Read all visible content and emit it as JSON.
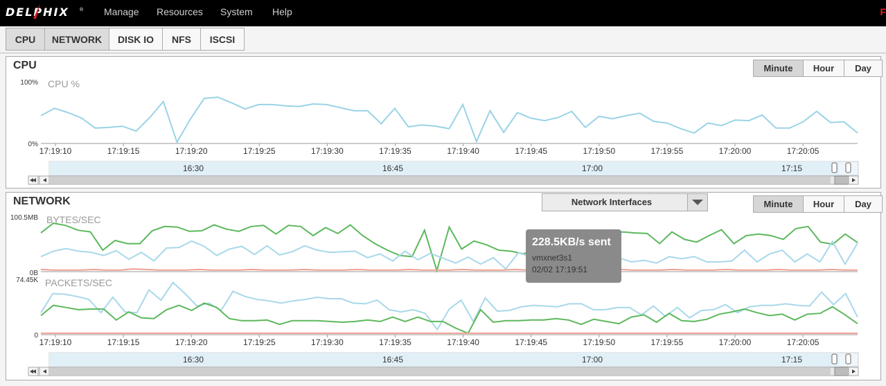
{
  "header": {
    "logo_text": "DELPHIX",
    "logo_reg": "®",
    "menu": [
      "Manage",
      "Resources",
      "System",
      "Help"
    ],
    "corner_mark": "F"
  },
  "tabs": [
    "CPU",
    "NETWORK",
    "DISK IO",
    "NFS",
    "ISCSI"
  ],
  "active_tabs": [
    "CPU",
    "NETWORK"
  ],
  "ranges": [
    "Minute",
    "Hour",
    "Day"
  ],
  "cpu_panel": {
    "title": "CPU",
    "series_label": "CPU %",
    "y_max_label": "100%",
    "y_min_label": "0%"
  },
  "network_panel": {
    "title": "NETWORK",
    "dropdown_label": "Network Interfaces",
    "bytes_label": "BYTES/SEC",
    "bytes_max_label": "100.5MB",
    "bytes_min_label": "0B",
    "packets_label": "PACKETS/SEC",
    "packets_max_label": "74.45K",
    "packets_min_label": "0"
  },
  "time_ticks": [
    "17:19:10",
    "17:19:15",
    "17:19:20",
    "17:19:25",
    "17:19:30",
    "17:19:35",
    "17:19:40",
    "17:19:45",
    "17:19:50",
    "17:19:55",
    "17:20:00",
    "17:20:05"
  ],
  "navigator_ticks": [
    "16:30",
    "16:45",
    "17:00",
    "17:15"
  ],
  "tooltip": {
    "value": "228.5KB/s sent",
    "interface": "vmxnet3s1",
    "timestamp": "02/02 17:19:51"
  },
  "colors": {
    "received": "#a8d8ea",
    "sent": "#5cb85c",
    "other": "#f0a090",
    "cpu": "#9ad3e6"
  },
  "chart_data": [
    {
      "type": "line",
      "title": "CPU %",
      "ylabel": "",
      "ylim": [
        0,
        100
      ],
      "x_start": "17:19:08",
      "x_step_seconds": 1,
      "series": [
        {
          "values": [
            45,
            57,
            50,
            41,
            25,
            26,
            28,
            20,
            42,
            68,
            2,
            40,
            73,
            75,
            66,
            56,
            63,
            63,
            61,
            60,
            64,
            63,
            58,
            53,
            53,
            32,
            57,
            27,
            30,
            28,
            24,
            63,
            3,
            53,
            18,
            50,
            41,
            37,
            42,
            52,
            26,
            44,
            40,
            45,
            49,
            36,
            33,
            24,
            17,
            33,
            29,
            38,
            37,
            46,
            25,
            25,
            35,
            52,
            34,
            35,
            17
          ]
        }
      ]
    },
    {
      "type": "line",
      "title": "BYTES/SEC",
      "ylim": [
        0,
        100.5
      ],
      "x_start": "17:19:08",
      "x_step_seconds": 1,
      "series": [
        {
          "values": [
            72,
            90,
            86,
            77,
            74,
            40,
            58,
            52,
            52,
            76,
            84,
            83,
            75,
            76,
            87,
            79,
            75,
            84,
            86,
            70,
            86,
            84,
            67,
            82,
            71,
            87,
            67,
            52,
            40,
            30,
            28,
            77,
            2,
            83,
            42,
            57,
            50,
            40,
            38,
            33,
            43,
            40,
            41,
            57,
            46,
            57,
            71,
            74,
            72,
            71,
            52,
            74,
            60,
            55,
            67,
            78,
            52,
            67,
            70,
            67,
            60,
            80,
            84,
            55,
            51,
            70,
            54
          ]
        },
        {
          "values": [
            28,
            38,
            43,
            38,
            36,
            30,
            39,
            23,
            36,
            20,
            44,
            45,
            57,
            47,
            30,
            42,
            47,
            32,
            48,
            31,
            37,
            48,
            40,
            36,
            37,
            38,
            26,
            33,
            20,
            38,
            22,
            34,
            25,
            16,
            27,
            14,
            26,
            5,
            35,
            28,
            33,
            35,
            24,
            39,
            27,
            30,
            26,
            18,
            21,
            16,
            28,
            24,
            28,
            18,
            18,
            20,
            40,
            18,
            33,
            40,
            18,
            33,
            18,
            56,
            14,
            53
          ]
        },
        {
          "values": [
            4,
            3,
            3,
            3,
            4,
            3,
            3,
            5,
            4,
            3,
            3,
            3,
            4,
            3,
            3,
            3,
            4,
            3,
            3,
            3,
            4,
            3,
            3,
            3,
            4,
            3,
            3,
            3,
            4,
            3,
            3,
            3,
            4,
            3,
            3,
            3,
            4,
            3,
            3,
            3,
            4,
            3,
            3,
            3,
            4,
            3,
            3,
            3,
            4,
            3,
            3,
            3,
            4,
            3,
            3,
            3,
            4,
            3,
            3,
            3,
            4,
            3,
            3
          ]
        }
      ]
    },
    {
      "type": "line",
      "title": "PACKETS/SEC",
      "ylim": [
        0,
        74.45
      ],
      "x_start": "17:19:08",
      "x_step_seconds": 1,
      "series": [
        {
          "values": [
            30,
            56,
            55,
            52,
            48,
            30,
            51,
            31,
            30,
            61,
            47,
            71,
            56,
            39,
            43,
            33,
            59,
            52,
            48,
            46,
            43,
            46,
            48,
            51,
            49,
            49,
            43,
            42,
            47,
            34,
            31,
            34,
            29,
            7,
            35,
            47,
            18,
            50,
            32,
            33,
            38,
            40,
            39,
            38,
            42,
            42,
            34,
            34,
            37,
            37,
            27,
            39,
            25,
            37,
            23,
            33,
            34,
            41,
            30,
            38,
            40,
            40,
            42,
            40,
            39,
            58,
            41,
            56,
            24
          ]
        },
        {
          "values": [
            26,
            40,
            37,
            34,
            35,
            35,
            20,
            31,
            23,
            22,
            34,
            40,
            33,
            43,
            37,
            22,
            19,
            19,
            20,
            14,
            19,
            19,
            19,
            18,
            17,
            18,
            20,
            18,
            24,
            18,
            24,
            18,
            18,
            9,
            2,
            34,
            17,
            19,
            19,
            20,
            20,
            22,
            20,
            14,
            21,
            18,
            15,
            24,
            27,
            17,
            29,
            19,
            18,
            21,
            28,
            31,
            35,
            30,
            26,
            28,
            20,
            28,
            29,
            38,
            27,
            15
          ]
        },
        {
          "values": [
            2,
            2,
            2,
            2,
            2,
            2,
            2,
            2,
            2,
            2,
            2,
            2,
            2,
            2,
            2,
            2,
            2,
            2,
            2,
            2,
            2,
            2,
            2,
            2,
            2,
            2,
            2,
            2,
            2,
            2,
            2,
            2,
            2,
            2,
            2,
            2,
            2,
            2,
            2,
            2,
            2,
            2,
            2,
            2,
            2,
            2,
            2,
            2,
            2,
            2,
            2,
            2,
            2,
            2,
            2,
            2,
            2,
            2,
            2,
            2,
            2,
            2
          ]
        }
      ]
    }
  ]
}
